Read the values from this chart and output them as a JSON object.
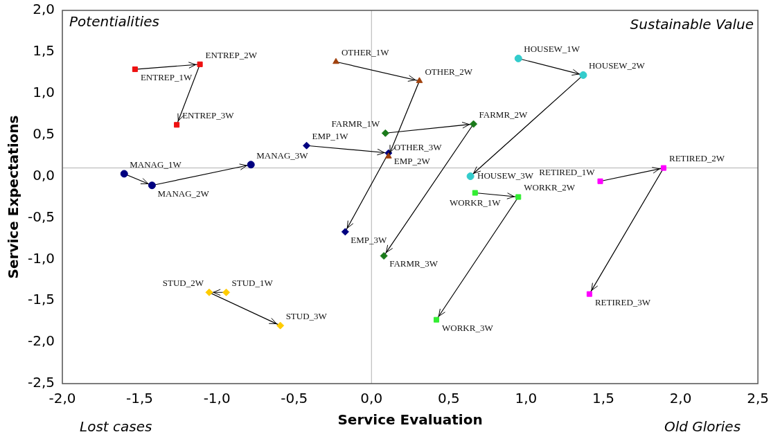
{
  "chart_data": {
    "type": "line",
    "xlabel": "Service Evaluation",
    "ylabel": "Service Expectations",
    "xlim": [
      -2,
      2.5
    ],
    "ylim": [
      -2.5,
      2
    ],
    "xticks": [
      {
        "value": -2,
        "label": "-2,0"
      },
      {
        "value": -1.5,
        "label": "-1,5"
      },
      {
        "value": -1,
        "label": "-1,0"
      },
      {
        "value": -0.5,
        "label": "-0,5"
      },
      {
        "value": 0,
        "label": "0,0"
      },
      {
        "value": 0.5,
        "label": "0,5"
      },
      {
        "value": 1,
        "label": "1,0"
      },
      {
        "value": 1.5,
        "label": "1,5"
      },
      {
        "value": 2,
        "label": "2,0"
      },
      {
        "value": 2.5,
        "label": "2,5"
      }
    ],
    "yticks": [
      {
        "value": -2.5,
        "label": "-2,5"
      },
      {
        "value": -2,
        "label": "-2,0"
      },
      {
        "value": -1.5,
        "label": "-1,5"
      },
      {
        "value": -1,
        "label": "-1,0"
      },
      {
        "value": -0.5,
        "label": "-0,5"
      },
      {
        "value": 0,
        "label": "0,0"
      },
      {
        "value": 0.5,
        "label": "0,5"
      },
      {
        "value": 1,
        "label": "1,0"
      },
      {
        "value": 1.5,
        "label": "1,5"
      },
      {
        "value": 2,
        "label": "2,0"
      }
    ],
    "grid": false,
    "legend": false,
    "ref_lines": [
      {
        "axis": "x",
        "value": 0,
        "color": "#b0b0b0"
      },
      {
        "axis": "y",
        "value": 0.1,
        "color": "#b0b0b0"
      }
    ],
    "annotations": [
      "Potentialities",
      "Sustainable Value",
      "Lost cases",
      "Old Glories",
      {
        "text": "ENTREP_1W",
        "x": -1.53,
        "y": 1.29
      },
      {
        "text": "ENTREP_2W",
        "x": -1.11,
        "y": 1.35
      },
      {
        "text": "ENTREP_3W",
        "x": -1.26,
        "y": 0.62
      },
      {
        "text": "OTHER_1W",
        "x": -0.23,
        "y": 1.38
      },
      {
        "text": "OTHER_2W",
        "x": 0.31,
        "y": 1.15
      },
      {
        "text": "OTHER_3W",
        "x": 0.11,
        "y": 0.24
      },
      {
        "text": "HOUSEW_1W",
        "x": 0.95,
        "y": 1.42
      },
      {
        "text": "HOUSEW_2W",
        "x": 1.37,
        "y": 1.22
      },
      {
        "text": "HOUSEW_3W",
        "x": 0.64,
        "y": 0.0
      },
      {
        "text": "FARMR_1W",
        "x": 0.09,
        "y": 0.52
      },
      {
        "text": "FARMR_2W",
        "x": 0.66,
        "y": 0.63
      },
      {
        "text": "FARMR_3W",
        "x": 0.08,
        "y": -0.96
      },
      {
        "text": "EMP_1W",
        "x": -0.42,
        "y": 0.37
      },
      {
        "text": "EMP_2W",
        "x": 0.11,
        "y": 0.28
      },
      {
        "text": "EMP_3W",
        "x": -0.17,
        "y": -0.67
      },
      {
        "text": "MANAG_1W",
        "x": -1.6,
        "y": 0.03
      },
      {
        "text": "MANAG_2W",
        "x": -1.42,
        "y": -0.11
      },
      {
        "text": "MANAG_3W",
        "x": -0.78,
        "y": 0.14
      },
      {
        "text": "STUD_1W",
        "x": -0.94,
        "y": -1.4
      },
      {
        "text": "STUD_2W",
        "x": -1.05,
        "y": -1.4
      },
      {
        "text": "STUD_3W",
        "x": -0.59,
        "y": -1.8
      },
      {
        "text": "WORKR_1W",
        "x": 0.67,
        "y": -0.2
      },
      {
        "text": "WORKR_2W",
        "x": 0.95,
        "y": -0.25
      },
      {
        "text": "WORKR_3W",
        "x": 0.42,
        "y": -1.73
      },
      {
        "text": "RETIRED_1W",
        "x": 1.48,
        "y": -0.06
      },
      {
        "text": "RETIRED_2W",
        "x": 1.89,
        "y": 0.1
      },
      {
        "text": "RETIRED_3W",
        "x": 1.41,
        "y": -1.42
      }
    ],
    "series": [
      {
        "color": "#ee1111",
        "marker": "square",
        "x": [
          -1.53,
          -1.11,
          -1.26
        ],
        "values": [
          1.29,
          1.35,
          0.62
        ]
      },
      {
        "color": "#a0410d",
        "marker": "triangle",
        "x": [
          -0.23,
          0.31,
          0.11
        ],
        "values": [
          1.38,
          1.15,
          0.24
        ]
      },
      {
        "color": "#33cccc",
        "marker": "circle",
        "x": [
          0.95,
          1.37,
          0.64
        ],
        "values": [
          1.42,
          1.22,
          0.0
        ]
      },
      {
        "color": "#1a7a1a",
        "marker": "diamond",
        "x": [
          0.09,
          0.66,
          0.08
        ],
        "values": [
          0.52,
          0.63,
          -0.96
        ]
      },
      {
        "color": "#000080",
        "marker": "diamond",
        "x": [
          -0.42,
          0.11,
          -0.17
        ],
        "values": [
          0.37,
          0.28,
          -0.67
        ]
      },
      {
        "color": "#000080",
        "marker": "circle",
        "x": [
          -1.6,
          -1.42,
          -0.78
        ],
        "values": [
          0.03,
          -0.11,
          0.14
        ]
      },
      {
        "color": "#ffcc00",
        "marker": "diamond",
        "x": [
          -0.94,
          -1.05,
          -0.59
        ],
        "values": [
          -1.4,
          -1.4,
          -1.8
        ]
      },
      {
        "color": "#33ee33",
        "marker": "square",
        "x": [
          0.67,
          0.95,
          0.42
        ],
        "values": [
          -0.2,
          -0.25,
          -1.73
        ]
      },
      {
        "color": "#ff00ff",
        "marker": "square",
        "x": [
          1.48,
          1.89,
          1.41
        ],
        "values": [
          -0.06,
          0.1,
          -1.42
        ]
      }
    ]
  }
}
